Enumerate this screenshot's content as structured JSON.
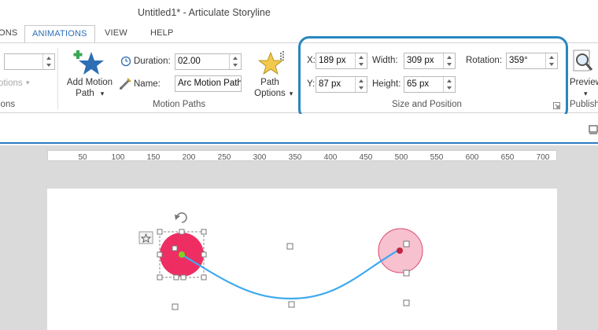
{
  "window": {
    "title": "Untitled1* - Articulate Storyline"
  },
  "tabs": [
    {
      "label": "ONS",
      "active": false
    },
    {
      "label": "ANIMATIONS",
      "active": true
    },
    {
      "label": "VIEW",
      "active": false
    },
    {
      "label": "HELP",
      "active": false
    }
  ],
  "animations_group": {
    "options_label": "otions",
    "group_label": "ions"
  },
  "motion_paths": {
    "add_button_line1": "Add Motion",
    "add_button_line2": "Path",
    "duration_label": "Duration:",
    "duration_value": "02.00",
    "name_label": "Name:",
    "name_value": "Arc Motion Path",
    "path_options_line1": "Path",
    "path_options_line2": "Options",
    "group_label": "Motion Paths"
  },
  "size_position": {
    "x_label": "X:",
    "x_value": "189 px",
    "y_label": "Y:",
    "y_value": "87 px",
    "width_label": "Width:",
    "width_value": "309 px",
    "height_label": "Height:",
    "height_value": "65 px",
    "rotation_label": "Rotation:",
    "rotation_value": "359°",
    "group_label": "Size and Position"
  },
  "publish": {
    "preview_label": "Preview",
    "publish_label": "Publish"
  },
  "ruler": {
    "ticks": [
      "50",
      "100",
      "150",
      "200",
      "250",
      "300",
      "350",
      "400",
      "450",
      "500",
      "550",
      "600",
      "650",
      "700"
    ]
  },
  "colors": {
    "accent": "#2a86bf",
    "start_circle": "#ee2e63",
    "end_circle": "#f7c1d0",
    "path_line": "#3fa9ef",
    "start_dot": "#7ed321",
    "end_dot": "#c0233f"
  },
  "icons": {
    "add_motion": "star-plus-icon",
    "path_options": "star-sparkle-icon",
    "duration": "clock-icon",
    "name": "pencil-icon",
    "preview": "magnifier-page-icon",
    "rotate": "rotate-handle-icon",
    "animation": "star-badge-icon"
  }
}
